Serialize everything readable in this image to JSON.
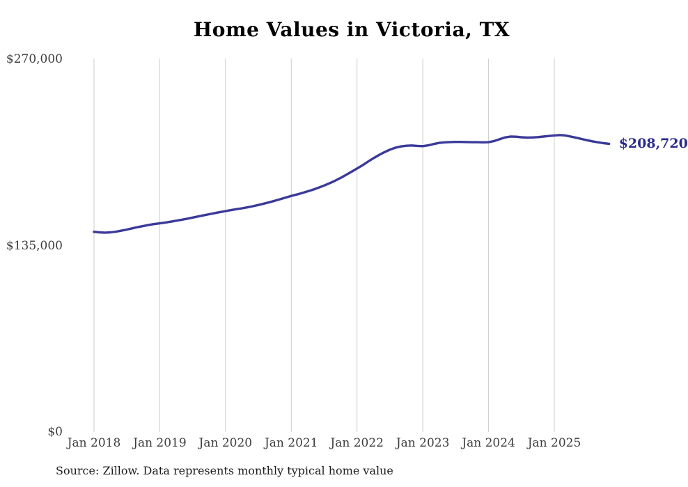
{
  "chart": {
    "title": "Home Values in Victoria, TX",
    "source": "Source: Zillow. Data represents monthly typical home value",
    "end_label": "$208,720"
  },
  "colors": {
    "line": "#3a3a9a",
    "end_label": "#2b2b8c",
    "gridline": "#cccccc",
    "axis_text": "#3d3d3d",
    "title_text": "#000000",
    "background": "#ffffff"
  },
  "chart_data": {
    "type": "line",
    "title": "Home Values in Victoria, TX",
    "source": "Source: Zillow. Data represents monthly typical home value",
    "xlabel": "",
    "ylabel": "",
    "ylim": [
      0,
      270000
    ],
    "grid": "vertical-yearly",
    "legend": false,
    "x_ticks": [
      "Jan 2018",
      "Jan 2019",
      "Jan 2020",
      "Jan 2021",
      "Jan 2022",
      "Jan 2023",
      "Jan 2024",
      "Jan 2025"
    ],
    "y_ticks": [
      {
        "label": "$270,000",
        "value": 270000
      },
      {
        "label": "$135,000",
        "value": 135000
      },
      {
        "label": "$0",
        "value": 0
      }
    ],
    "series": [
      {
        "name": "Monthly typical home value",
        "start_month": "Jan 2018",
        "end_month": "Nov 2025",
        "interval": "monthly",
        "end_value": 208720,
        "end_label": "$208,720",
        "values": [
          145000,
          144600,
          144400,
          144600,
          145100,
          145800,
          146600,
          147500,
          148400,
          149200,
          150000,
          150600,
          151100,
          151700,
          152300,
          153000,
          153700,
          154500,
          155300,
          156100,
          156900,
          157700,
          158500,
          159300,
          160000,
          160700,
          161400,
          162000,
          162700,
          163500,
          164400,
          165400,
          166400,
          167500,
          168600,
          169800,
          171000,
          172000,
          173100,
          174300,
          175600,
          177000,
          178500,
          180200,
          182000,
          184000,
          186200,
          188500,
          190800,
          193200,
          195800,
          198300,
          200600,
          202700,
          204500,
          205900,
          206800,
          207300,
          207500,
          207200,
          207000,
          207600,
          208600,
          209400,
          209800,
          210000,
          210100,
          210100,
          210000,
          209900,
          209900,
          209800,
          209900,
          210700,
          212000,
          213300,
          214000,
          213900,
          213500,
          213200,
          213300,
          213600,
          214000,
          214400,
          214800,
          215100,
          214800,
          214000,
          213100,
          212200,
          211300,
          210500,
          209800,
          209200,
          208720
        ]
      }
    ]
  }
}
